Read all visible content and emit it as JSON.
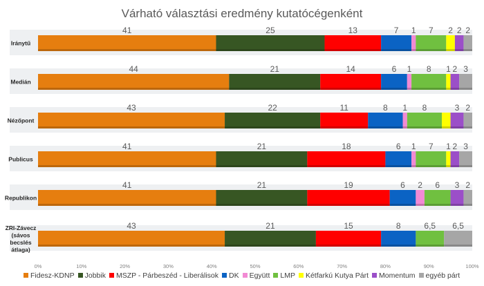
{
  "chart_data": {
    "type": "bar",
    "orientation": "horizontal",
    "stacked": true,
    "title": "Várható választási eredmény kutatócégenként",
    "categories": [
      "Iránytű",
      "Medián",
      "Nézőpont",
      "Publicus",
      "Republikon",
      "ZRI-Závecz (sávos becslés átlaga)"
    ],
    "xlim": [
      0,
      100
    ],
    "xticks": [
      "0%",
      "10%",
      "20%",
      "30%",
      "40%",
      "50%",
      "60%",
      "70%",
      "80%",
      "90%",
      "100%"
    ],
    "grid": false,
    "legend_position": "bottom",
    "series": [
      {
        "name": "Fidesz-KDNP",
        "color": "#E67E0F",
        "values": [
          41,
          44,
          43,
          41,
          41,
          43
        ],
        "labels": [
          "41",
          "44",
          "43",
          "41",
          "41",
          "43"
        ]
      },
      {
        "name": "Jobbik",
        "color": "#375623",
        "values": [
          25,
          21,
          22,
          21,
          21,
          21
        ],
        "labels": [
          "25",
          "21",
          "22",
          "21",
          "21",
          "21"
        ]
      },
      {
        "name": "MSZP - Párbeszéd - Liberálisok",
        "color": "#FF0000",
        "values": [
          13,
          14,
          11,
          18,
          19,
          15
        ],
        "labels": [
          "13",
          "14",
          "11",
          "18",
          "19",
          "15"
        ]
      },
      {
        "name": "DK",
        "color": "#0B63C4",
        "values": [
          7,
          6,
          8,
          6,
          6,
          8
        ],
        "labels": [
          "7",
          "6",
          "8",
          "6",
          "6",
          "8"
        ]
      },
      {
        "name": "Együtt",
        "color": "#F28AD4",
        "values": [
          1,
          1,
          1,
          1,
          2,
          null
        ],
        "labels": [
          "1",
          "1",
          "1",
          "1",
          "2",
          ""
        ]
      },
      {
        "name": "LMP",
        "color": "#70C040",
        "values": [
          7,
          8,
          8,
          7,
          6,
          6.5
        ],
        "labels": [
          "7",
          "8",
          "8",
          "7",
          "6",
          "6,5"
        ]
      },
      {
        "name": "Kétfarkú Kutya Párt",
        "color": "#FFFF00",
        "values": [
          2,
          1,
          2,
          1,
          null,
          null
        ],
        "labels": [
          "2",
          "1",
          "",
          "1",
          "",
          ""
        ]
      },
      {
        "name": "Momentum",
        "color": "#9B4FC8",
        "values": [
          2,
          2,
          3,
          2,
          3,
          null
        ],
        "labels": [
          "2",
          "2",
          "3",
          "2",
          "3",
          ""
        ]
      },
      {
        "name": "egyéb párt",
        "color": "#A6A6A6",
        "values": [
          2,
          3,
          2,
          3,
          2,
          6.5
        ],
        "labels": [
          "2",
          "3",
          "2",
          "3",
          "2",
          "6,5"
        ]
      }
    ]
  }
}
